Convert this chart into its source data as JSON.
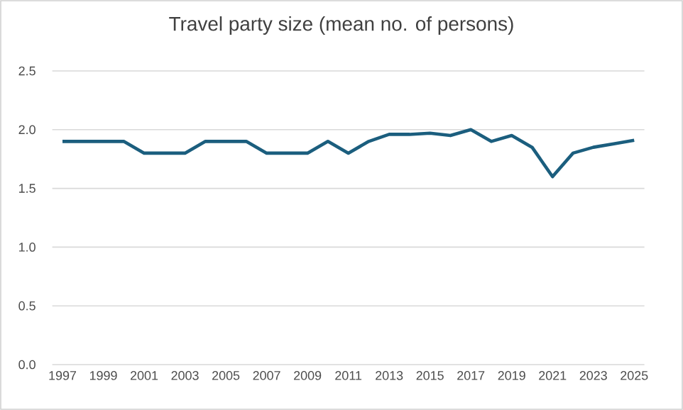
{
  "chart_data": {
    "type": "line",
    "title": "Travel party size (mean no. of persons)",
    "categories": [
      "1997",
      null,
      "1999",
      null,
      "2001",
      null,
      "2003",
      null,
      "2005",
      null,
      "2007",
      null,
      "2009",
      null,
      "2011",
      null,
      "2013",
      null,
      "2015",
      null,
      "2017",
      null,
      "2019",
      null,
      "2021",
      null,
      "2023",
      null,
      "2025"
    ],
    "series": [
      {
        "color": "#1b5e7e",
        "values": [
          1.9,
          1.9,
          1.9,
          1.9,
          1.8,
          1.8,
          1.8,
          1.9,
          1.9,
          1.9,
          1.8,
          1.8,
          1.8,
          1.9,
          1.8,
          1.9,
          1.96,
          1.96,
          1.97,
          1.95,
          2.0,
          1.9,
          1.95,
          1.85,
          1.6,
          1.8,
          1.85,
          1.88,
          1.91
        ]
      }
    ],
    "ylim": [
      0,
      2.5
    ],
    "yticks": [
      {
        "value": 0,
        "label": "0.0"
      },
      0.5,
      {
        "value": 1,
        "label": "1.0"
      },
      1.5,
      {
        "value": 2,
        "label": "2.0"
      },
      2.5
    ],
    "grid": "y",
    "marker": "none",
    "line_style": "solid"
  }
}
